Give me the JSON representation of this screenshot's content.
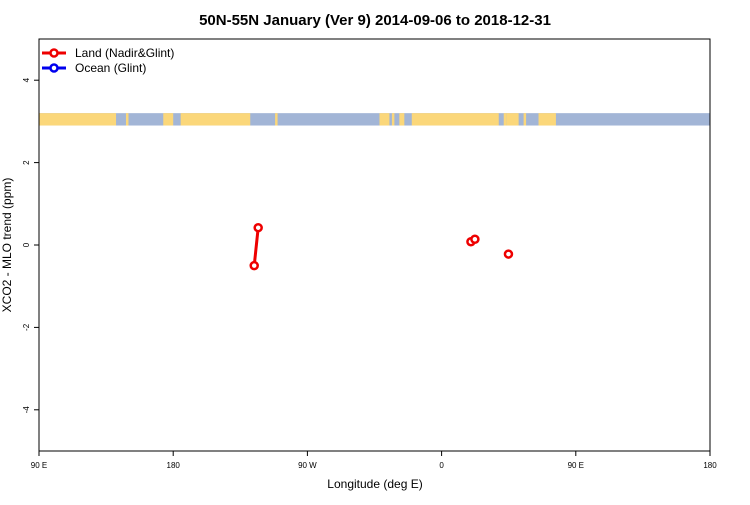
{
  "chart_data": {
    "type": "line",
    "title": "50N-55N January (Ver 9)   2014-09-06 to 2018-12-31",
    "xlabel": "Longitude (deg E)",
    "ylabel": "XCO2 - MLO trend (ppm)",
    "xlim": [
      -90,
      180
    ],
    "ylim": [
      -5,
      5
    ],
    "x_ticks": [
      {
        "value": -90,
        "label": "90 E"
      },
      {
        "value": -36,
        "label": "180"
      },
      {
        "value": 18,
        "label": "90 W"
      },
      {
        "value": 72,
        "label": "0"
      },
      {
        "value": 126,
        "label": "90 E"
      },
      {
        "value": 180,
        "label": "180"
      }
    ],
    "y_ticks": [
      {
        "value": -4,
        "label": "-4"
      },
      {
        "value": -2,
        "label": "-2"
      },
      {
        "value": 0,
        "label": "0"
      },
      {
        "value": 2,
        "label": "2"
      },
      {
        "value": 4,
        "label": "4"
      }
    ],
    "legend_position": "top-left",
    "grid": false,
    "map_strip": {
      "y_range": [
        2.9,
        3.2
      ],
      "ocean_color": "#a2b5d6",
      "land_color": "#fbd77a",
      "land_spans": [
        [
          -90,
          -59
        ],
        [
          -55,
          -54
        ],
        [
          -40,
          -36
        ],
        [
          -33,
          -5
        ],
        [
          5,
          6
        ],
        [
          47,
          51
        ],
        [
          52,
          53
        ],
        [
          55,
          57
        ],
        [
          60,
          95
        ],
        [
          97,
          98
        ],
        [
          98,
          103
        ],
        [
          105,
          106
        ],
        [
          111,
          118
        ]
      ]
    },
    "series": [
      {
        "name": "Land (Nadir&Glint)",
        "color": "#ee0000",
        "segments": [
          [
            {
              "x": -3.4,
              "y": -0.5
            },
            {
              "x": -1.8,
              "y": 0.42
            }
          ],
          [
            {
              "x": 83.8,
              "y": 0.08
            },
            {
              "x": 85.4,
              "y": 0.14
            }
          ],
          [
            {
              "x": 98.9,
              "y": -0.22
            }
          ]
        ]
      },
      {
        "name": "Ocean (Glint)",
        "color": "#0000ee",
        "segments": []
      }
    ]
  }
}
